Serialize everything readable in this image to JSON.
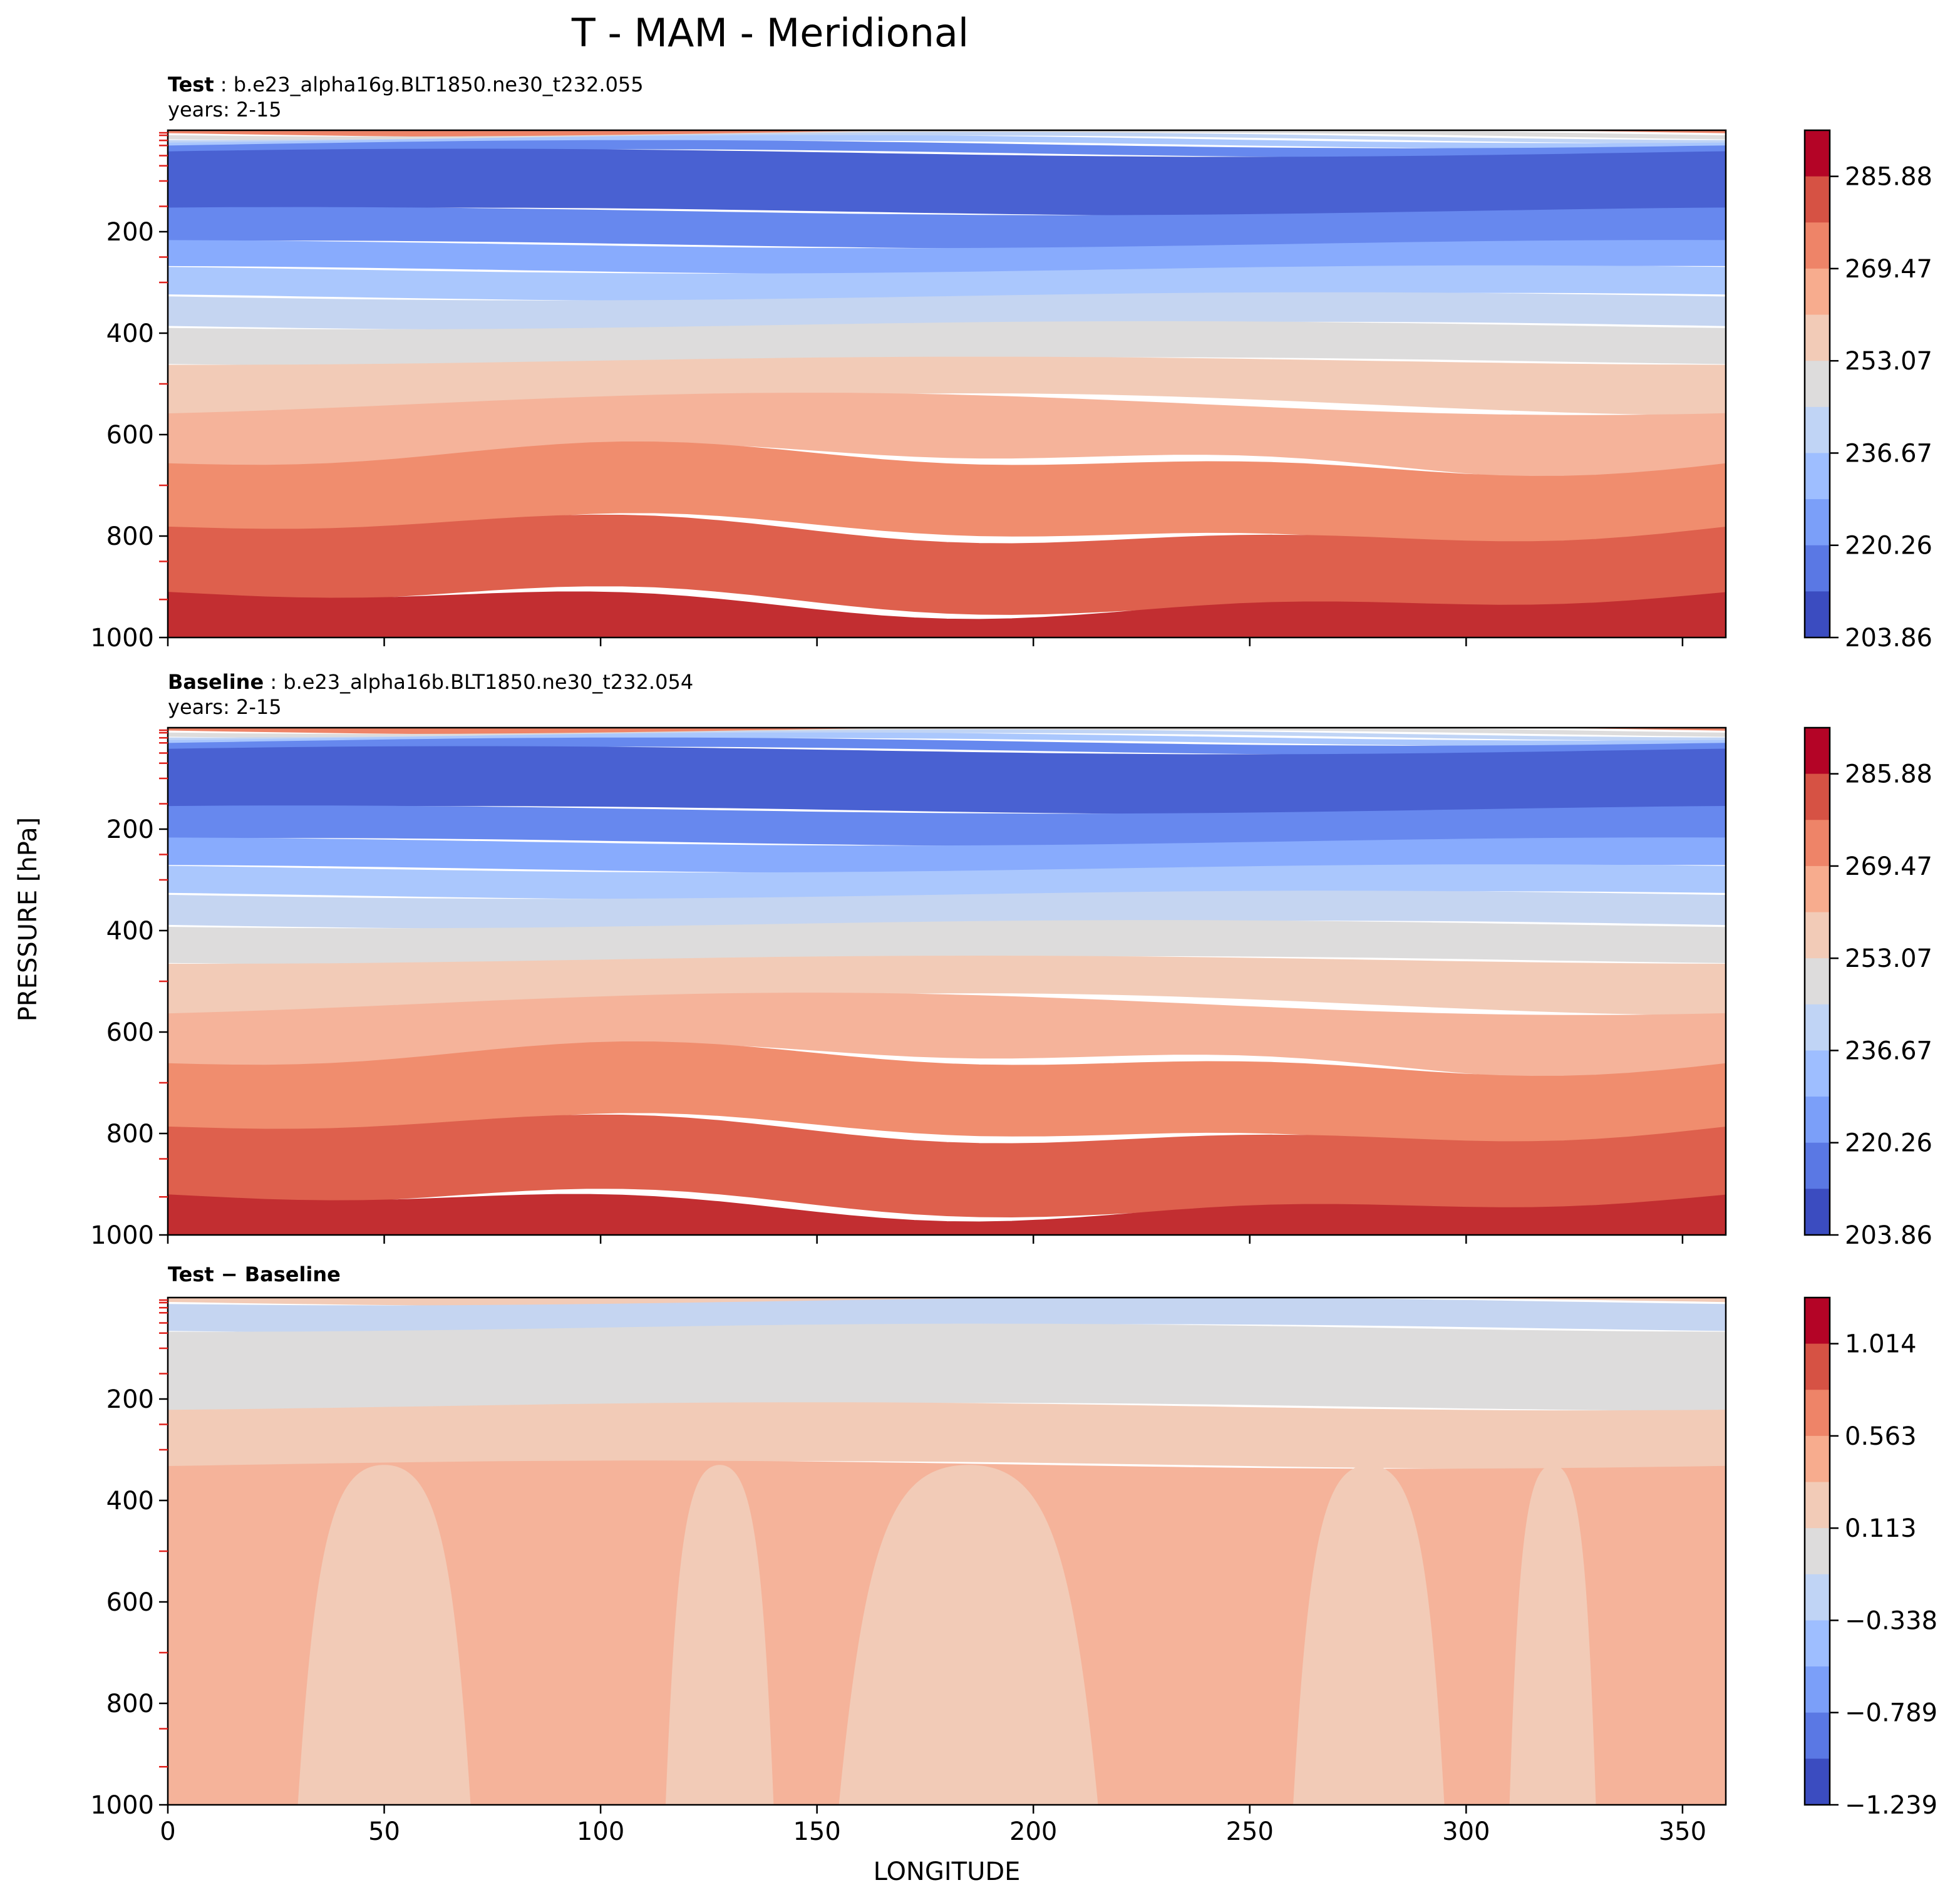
{
  "chart_data": {
    "type": "heatmap",
    "title": "T - MAM - Meridional",
    "xlabel": "LONGITUDE",
    "ylabel": "PRESSURE [hPa]",
    "xlim": [
      0,
      360
    ],
    "ylim": [
      1000,
      0
    ],
    "xticks": [
      "0",
      "50",
      "100",
      "150",
      "200",
      "250",
      "300",
      "350"
    ],
    "yticks": [
      "200",
      "400",
      "600",
      "800",
      "1000"
    ],
    "panels": [
      {
        "id": "test",
        "label_bold": "Test",
        "label_rest": " : b.e23_alpha16g.BLT1850.ne30_t232.055",
        "years": "years: 2-15",
        "colorbar_ticks": [
          "285.88",
          "269.47",
          "253.07",
          "236.67",
          "220.26",
          "203.86"
        ],
        "n_levels": 11,
        "bands_hpa": [
          {
            "from": 0,
            "to": 5,
            "color": "#ee8468"
          },
          {
            "from": 5,
            "to": 12,
            "color": "#dddcdc"
          },
          {
            "from": 12,
            "to": 18,
            "color": "#c0d4f5"
          },
          {
            "from": 18,
            "to": 28,
            "color": "#aac7fd"
          },
          {
            "from": 28,
            "to": 45,
            "color": "#6688ee"
          },
          {
            "from": 45,
            "to": 160,
            "color": "#4961d2"
          },
          {
            "from": 160,
            "to": 225,
            "color": "#6788ee"
          },
          {
            "from": 225,
            "to": 275,
            "color": "#88abfd"
          },
          {
            "from": 275,
            "to": 328,
            "color": "#aac7fd"
          },
          {
            "from": 328,
            "to": 385,
            "color": "#c5d5f1"
          },
          {
            "from": 385,
            "to": 455,
            "color": "#dddcdc"
          },
          {
            "from": 455,
            "to": 540,
            "color": "#f2cbb7"
          },
          {
            "from": 540,
            "to": 650,
            "color": "#f5b39a"
          },
          {
            "from": 650,
            "to": 790,
            "color": "#f08d6e"
          },
          {
            "from": 790,
            "to": 930,
            "color": "#de604d"
          },
          {
            "from": 930,
            "to": 1000,
            "color": "#c22e31"
          }
        ]
      },
      {
        "id": "baseline",
        "label_bold": "Baseline",
        "label_rest": " : b.e23_alpha16b.BLT1850.ne30_t232.054",
        "years": "years: 2-15",
        "colorbar_ticks": [
          "285.88",
          "269.47",
          "253.07",
          "236.67",
          "220.26",
          "203.86"
        ],
        "n_levels": 11,
        "bands_hpa": [
          {
            "from": 0,
            "to": 5,
            "color": "#ee8468"
          },
          {
            "from": 5,
            "to": 12,
            "color": "#dddcdc"
          },
          {
            "from": 12,
            "to": 18,
            "color": "#c0d4f5"
          },
          {
            "from": 18,
            "to": 28,
            "color": "#aac7fd"
          },
          {
            "from": 28,
            "to": 45,
            "color": "#6688ee"
          },
          {
            "from": 45,
            "to": 162,
            "color": "#4961d2"
          },
          {
            "from": 162,
            "to": 225,
            "color": "#6788ee"
          },
          {
            "from": 225,
            "to": 278,
            "color": "#88abfd"
          },
          {
            "from": 278,
            "to": 330,
            "color": "#aac7fd"
          },
          {
            "from": 330,
            "to": 388,
            "color": "#c5d5f1"
          },
          {
            "from": 388,
            "to": 458,
            "color": "#dddcdc"
          },
          {
            "from": 458,
            "to": 545,
            "color": "#f2cbb7"
          },
          {
            "from": 545,
            "to": 655,
            "color": "#f5b39a"
          },
          {
            "from": 655,
            "to": 795,
            "color": "#f08d6e"
          },
          {
            "from": 795,
            "to": 940,
            "color": "#de604d"
          },
          {
            "from": 940,
            "to": 1000,
            "color": "#c22e31"
          }
        ]
      },
      {
        "id": "diff",
        "label_bold": "Test − Baseline",
        "label_rest": "",
        "years": "",
        "colorbar_ticks": [
          "1.014",
          "0.563",
          "0.113",
          "−0.338",
          "−0.789",
          "−1.239"
        ],
        "n_levels": 11,
        "bands_hpa": [
          {
            "from": 0,
            "to": 8,
            "color": "#f2cbb7"
          },
          {
            "from": 8,
            "to": 60,
            "color": "#c5d5f1"
          },
          {
            "from": 60,
            "to": 215,
            "color": "#dddcdc"
          },
          {
            "from": 215,
            "to": 330,
            "color": "#f2cbb7"
          },
          {
            "from": 330,
            "to": 1000,
            "color": "#f5b39a"
          }
        ],
        "light_regions_lon": [
          [
            30,
            70
          ],
          [
            115,
            140
          ],
          [
            155,
            215
          ],
          [
            260,
            295
          ],
          [
            310,
            330
          ]
        ]
      }
    ],
    "colorbar_palette": [
      "#3b4cc0",
      "#5a78e4",
      "#7b9ff9",
      "#9ebeff",
      "#c0d4f5",
      "#dddcdc",
      "#f2cbb7",
      "#f7ac8e",
      "#ee8468",
      "#d65244",
      "#b40426"
    ]
  }
}
